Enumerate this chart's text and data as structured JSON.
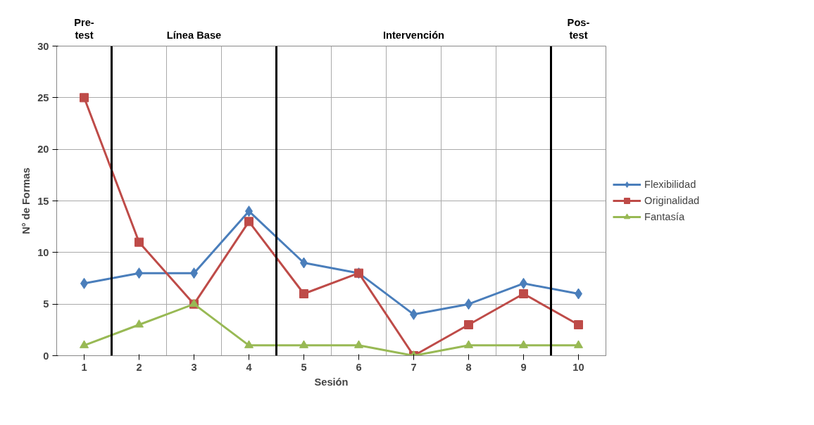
{
  "chart_data": {
    "type": "line",
    "xlabel": "Sesión",
    "ylabel": "N° de Formas",
    "x": [
      1,
      2,
      3,
      4,
      5,
      6,
      7,
      8,
      9,
      10
    ],
    "xlim": [
      0.5,
      10.5
    ],
    "xticks": [
      1,
      2,
      3,
      4,
      5,
      6,
      7,
      8,
      9,
      10
    ],
    "ylim": [
      0,
      30
    ],
    "yticks": [
      0,
      5,
      10,
      15,
      20,
      25,
      30
    ],
    "grid": true,
    "legend": "right",
    "series": [
      {
        "name": "Flexibilidad",
        "color": "#4a7ebb",
        "marker": "diamond",
        "values": [
          7,
          8,
          8,
          14,
          9,
          8,
          4,
          5,
          7,
          6
        ]
      },
      {
        "name": "Originalidad",
        "color": "#be4b48",
        "marker": "square",
        "values": [
          25,
          11,
          5,
          13,
          6,
          8,
          0,
          3,
          6,
          3
        ]
      },
      {
        "name": "Fantasía",
        "color": "#98b954",
        "marker": "triangle",
        "values": [
          1,
          3,
          5,
          1,
          1,
          1,
          0,
          1,
          1,
          1
        ]
      }
    ],
    "ref_lines": [
      {
        "axis": "x",
        "value": 1.5,
        "color": "#000000"
      },
      {
        "axis": "x",
        "value": 4.5,
        "color": "#000000"
      },
      {
        "axis": "x",
        "value": 9.5,
        "color": "#000000"
      }
    ],
    "annotations": [
      "Pre-\ntest",
      "Línea Base",
      "Intervención",
      "Pos-\ntest"
    ]
  }
}
